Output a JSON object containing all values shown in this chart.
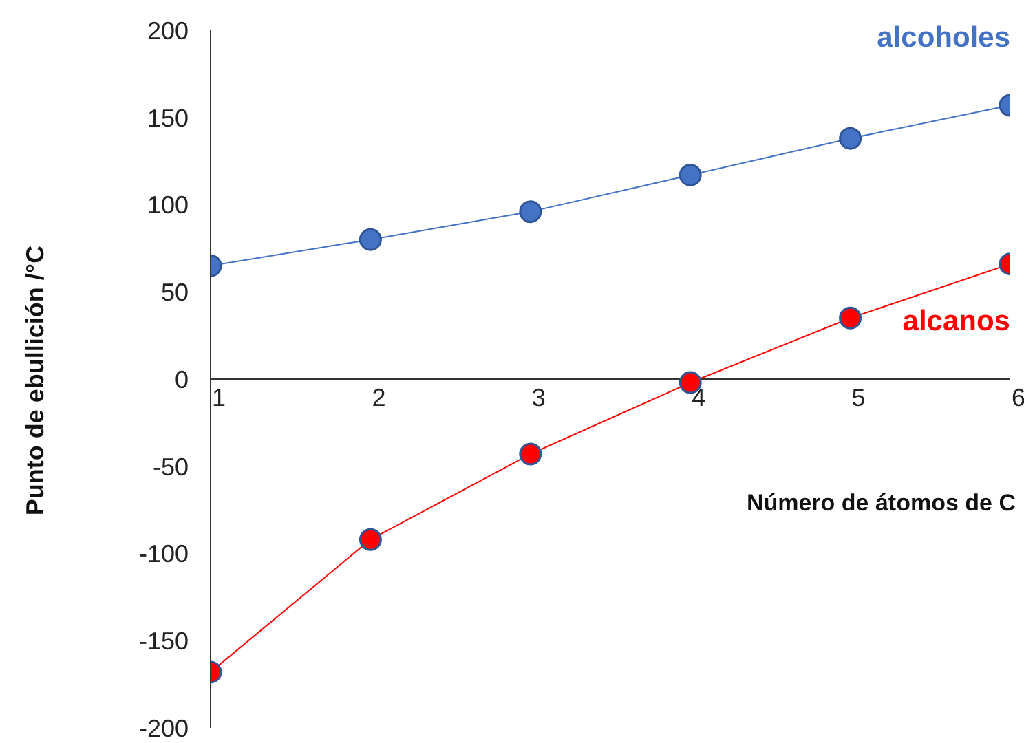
{
  "chart_data": {
    "type": "line",
    "xlabel": "Número de átomos de C",
    "ylabel": "Punto de ebullición /°C",
    "x": [
      1,
      2,
      3,
      4,
      5,
      6
    ],
    "series": [
      {
        "name": "alcoholes",
        "color": "#4472c4",
        "values": [
          65,
          80,
          96,
          117,
          138,
          157
        ]
      },
      {
        "name": "alcanos",
        "color": "#ff0000",
        "values": [
          -168,
          -92,
          -43,
          -2,
          35,
          66
        ]
      }
    ],
    "xlim": [
      1,
      6
    ],
    "xticks": [
      1,
      2,
      3,
      4,
      5,
      6
    ],
    "ylim": [
      -200,
      200
    ],
    "yticks": [
      -200,
      -150,
      -100,
      -50,
      0,
      50,
      100,
      150,
      200
    ],
    "grid": false,
    "marker": "circle",
    "line_style": "solid"
  }
}
